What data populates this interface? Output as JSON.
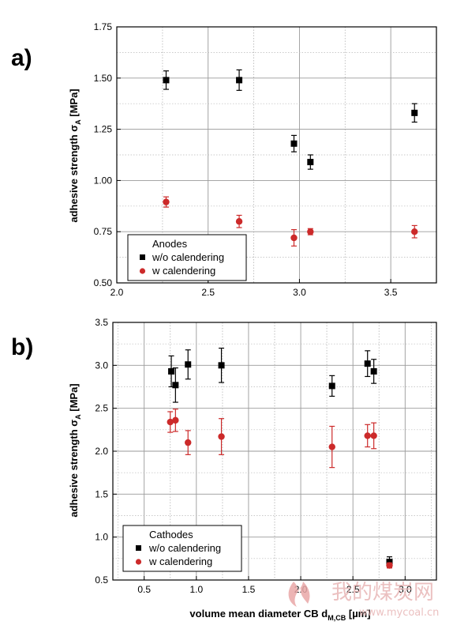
{
  "chart_data": [
    {
      "panel": "a)",
      "type": "scatter",
      "xlim": [
        2.0,
        3.75
      ],
      "ylim": [
        0.5,
        1.75
      ],
      "xticks": [
        2.0,
        2.5,
        3.0,
        3.5
      ],
      "xtick_labels": [
        "2.0",
        "2.5",
        "3.0",
        "3.5"
      ],
      "yticks": [
        0.5,
        0.75,
        1.0,
        1.25,
        1.5,
        1.75
      ],
      "ytick_labels": [
        "0.50",
        "0.75",
        "1.00",
        "1.25",
        "1.50",
        "1.75"
      ],
      "ylabel_main": "adhesive strength σ",
      "ylabel_sub": "A",
      "ylabel_unit": " [MPa]",
      "grid": true,
      "legend_title": "Anodes",
      "legend_placement": "bottom-left",
      "series": [
        {
          "name": "w/o calendering",
          "marker": "square",
          "color": "#000000",
          "x": [
            2.27,
            2.67,
            2.97,
            3.06,
            3.63
          ],
          "y": [
            1.49,
            1.49,
            1.18,
            1.09,
            1.33
          ],
          "err": [
            0.045,
            0.05,
            0.04,
            0.035,
            0.045
          ]
        },
        {
          "name": "w   calendering",
          "marker": "circle",
          "color": "#cc2a2a",
          "x": [
            2.27,
            2.67,
            2.97,
            3.06,
            3.63
          ],
          "y": [
            0.895,
            0.8,
            0.72,
            0.75,
            0.75
          ],
          "err": [
            0.025,
            0.03,
            0.04,
            0.015,
            0.03
          ]
        }
      ]
    },
    {
      "panel": "b)",
      "type": "scatter",
      "xlim": [
        0.2,
        3.3
      ],
      "ylim": [
        0.5,
        3.5
      ],
      "xticks": [
        0.5,
        1.0,
        1.5,
        2.0,
        2.5,
        3.0
      ],
      "xtick_labels": [
        "0.5",
        "1.0",
        "1.5",
        "2.0",
        "2.5",
        "3.0"
      ],
      "yticks": [
        0.5,
        1.0,
        1.5,
        2.0,
        2.5,
        3.0,
        3.5
      ],
      "ytick_labels": [
        "0.5",
        "1.0",
        "1.5",
        "2.0",
        "2.5",
        "3.0",
        "3.5"
      ],
      "ylabel_main": "adhesive strength σ",
      "ylabel_sub": "A",
      "ylabel_unit": " [MPa]",
      "xlabel_main": "volume mean diameter CB d",
      "xlabel_sub": "M,CB",
      "xlabel_unit": " [µm]",
      "grid": true,
      "legend_title": "Cathodes",
      "legend_placement": "bottom-left",
      "series": [
        {
          "name": "w/o calendering",
          "marker": "square",
          "color": "#000000",
          "x": [
            0.76,
            0.8,
            0.92,
            1.24,
            2.3,
            2.64,
            2.7,
            2.85
          ],
          "y": [
            2.93,
            2.77,
            3.01,
            3.0,
            2.76,
            3.02,
            2.93,
            0.71
          ],
          "err": [
            0.18,
            0.2,
            0.17,
            0.2,
            0.12,
            0.15,
            0.14,
            0.06
          ]
        },
        {
          "name": "w   calendering",
          "marker": "circle",
          "color": "#cc2a2a",
          "x": [
            0.75,
            0.8,
            0.92,
            1.24,
            2.3,
            2.64,
            2.7,
            2.85
          ],
          "y": [
            2.34,
            2.36,
            2.1,
            2.17,
            2.05,
            2.18,
            2.18,
            0.67
          ],
          "err": [
            0.12,
            0.13,
            0.14,
            0.21,
            0.24,
            0.13,
            0.15,
            0.03
          ]
        }
      ]
    }
  ],
  "watermark": {
    "cn": "我的煤炭网",
    "url": "www.mycoal.cn"
  }
}
